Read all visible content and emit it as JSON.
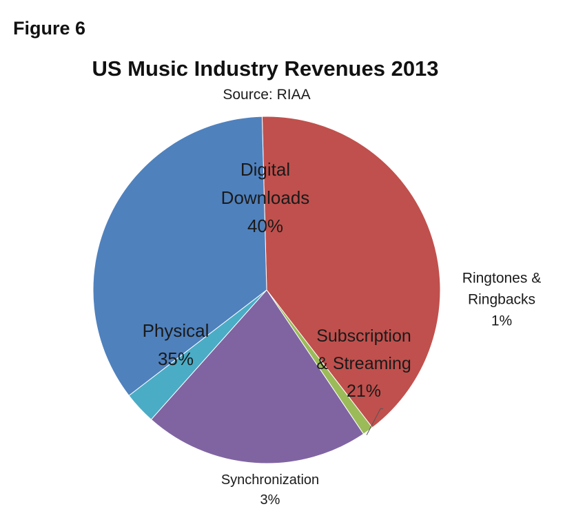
{
  "figure_label": "Figure 6",
  "chart_data": {
    "type": "pie",
    "title": "US Music Industry Revenues 2013",
    "subtitle": "Source: RIAA",
    "slices": [
      {
        "name": "Digital Downloads",
        "label_lines": [
          "Digital",
          "Downloads",
          "40%"
        ],
        "value": 40,
        "color": "#c0504d",
        "placement": "inside"
      },
      {
        "name": "Ringtones & Ringbacks",
        "label_lines": [
          "Ringtones &",
          "Ringbacks",
          "1%"
        ],
        "value": 1,
        "color": "#9bbb59",
        "placement": "outside-right"
      },
      {
        "name": "Subscription & Streaming",
        "label_lines": [
          "Subscription",
          "& Streaming",
          "21%"
        ],
        "value": 21,
        "color": "#8064a2",
        "placement": "inside"
      },
      {
        "name": "Synchronization",
        "label_lines": [
          "Synchronization",
          "3%"
        ],
        "value": 3,
        "color": "#4bacc6",
        "placement": "outside-bottom"
      },
      {
        "name": "Physical",
        "label_lines": [
          "Physical",
          "35%"
        ],
        "value": 35,
        "color": "#4f81bd",
        "placement": "inside"
      }
    ]
  }
}
